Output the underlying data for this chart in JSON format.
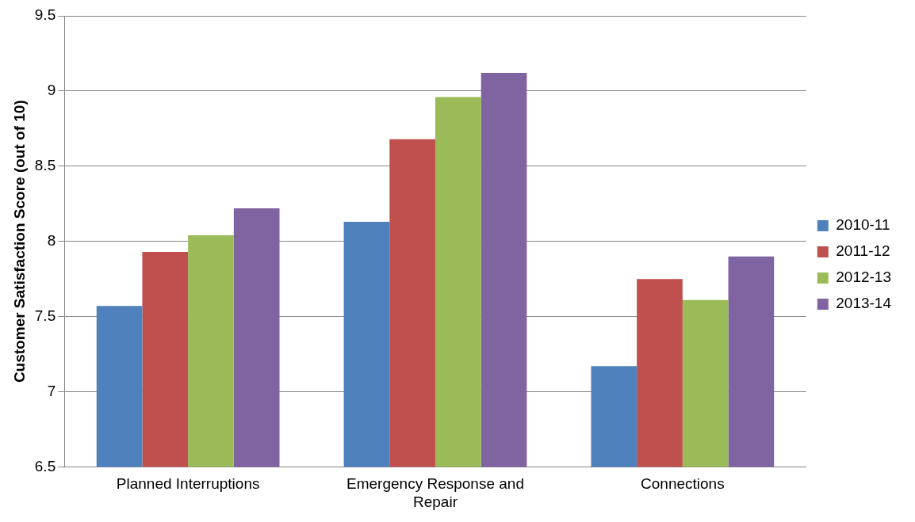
{
  "chart_data": {
    "type": "bar",
    "ylabel": "Customer Satisfaction Score (out of 10)",
    "categories": [
      "Planned Interruptions",
      "Emergency Response and Repair",
      "Connections"
    ],
    "series": [
      {
        "name": "2010-11",
        "color": "#4f81bd",
        "values": [
          7.57,
          8.13,
          7.17
        ]
      },
      {
        "name": "2011-12",
        "color": "#c0504d",
        "values": [
          7.93,
          8.68,
          7.75
        ]
      },
      {
        "name": "2012-13",
        "color": "#9bbb59",
        "values": [
          8.04,
          8.96,
          7.61
        ]
      },
      {
        "name": "2013-14",
        "color": "#8064a2",
        "values": [
          8.22,
          9.12,
          7.9
        ]
      }
    ],
    "ylim": [
      6.5,
      9.5
    ],
    "yticks": [
      6.5,
      7,
      7.5,
      8,
      8.5,
      9,
      9.5
    ],
    "grid": "y",
    "legend": "right"
  }
}
